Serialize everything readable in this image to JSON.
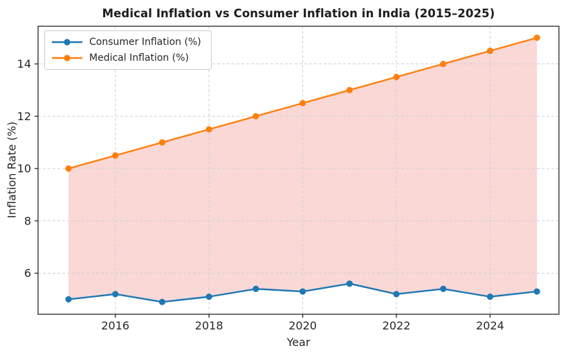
{
  "chart_data": {
    "type": "line",
    "title": "Medical Inflation vs Consumer Inflation in India (2015–2025)",
    "xlabel": "Year",
    "ylabel": "Inflation Rate (%)",
    "x": [
      2015,
      2016,
      2017,
      2018,
      2019,
      2020,
      2021,
      2022,
      2023,
      2024,
      2025
    ],
    "series": [
      {
        "name": "Consumer Inflation (%)",
        "color": "#1f77b4",
        "values": [
          5.0,
          5.2,
          4.9,
          5.1,
          5.4,
          5.3,
          5.6,
          5.2,
          5.4,
          5.1,
          5.3
        ]
      },
      {
        "name": "Medical Inflation (%)",
        "color": "#ff7f0e",
        "values": [
          10.0,
          10.5,
          11.0,
          11.5,
          12.0,
          12.5,
          13.0,
          13.5,
          14.0,
          14.5,
          15.0
        ]
      }
    ],
    "fill_between": {
      "upper": "Medical Inflation (%)",
      "lower": "Consumer Inflation (%)",
      "color": "#f9d8d6"
    },
    "xticks": [
      2016,
      2018,
      2020,
      2022,
      2024
    ],
    "yticks": [
      6,
      8,
      10,
      12,
      14
    ],
    "xlim": [
      2014.35,
      2025.47
    ],
    "ylim": [
      4.43,
      15.44
    ],
    "grid": true,
    "legend_position": "upper left",
    "background": "#ffffff",
    "spine_color": "#262626"
  }
}
